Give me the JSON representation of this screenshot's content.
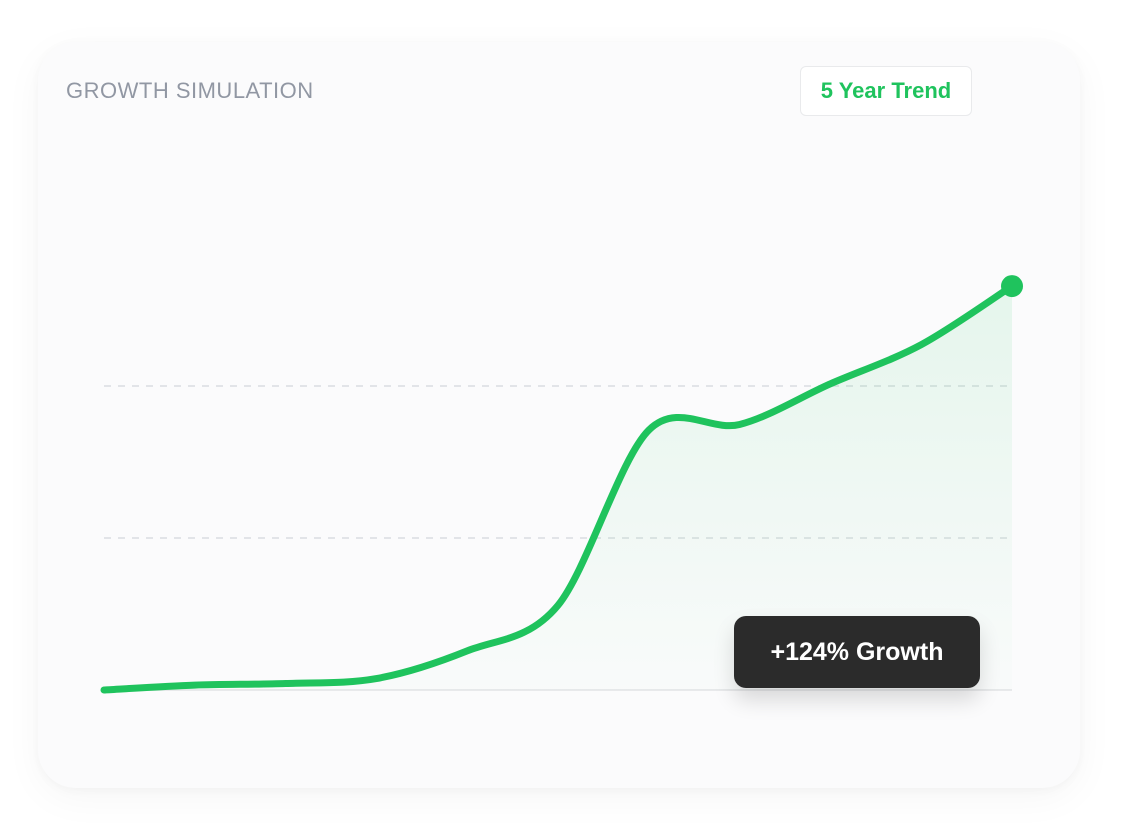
{
  "card": {
    "title": "GROWTH SIMULATION",
    "trend_label": "5 Year Trend",
    "growth_label": "+124% Growth"
  },
  "colors": {
    "line": "#1fc35d",
    "grid": "#dadde1",
    "title": "#9197a3",
    "badge_bg": "#2b2b2b"
  },
  "chart_data": {
    "type": "line",
    "title": "GROWTH SIMULATION",
    "xlabel": "",
    "ylabel": "",
    "x": [
      0,
      0.5,
      1,
      1.5,
      2,
      2.5,
      3,
      3.5,
      4,
      4.5,
      5
    ],
    "series": [
      {
        "values": [
          100,
          101.5,
          102,
          103.5,
          112,
          126,
          179.8,
          181.5,
          194,
          206,
          224
        ]
      }
    ],
    "xlim": [
      0,
      5
    ],
    "ylim": [
      100,
      240
    ],
    "grid": true,
    "legend": "none",
    "annotations": [
      "+124% Growth"
    ]
  }
}
